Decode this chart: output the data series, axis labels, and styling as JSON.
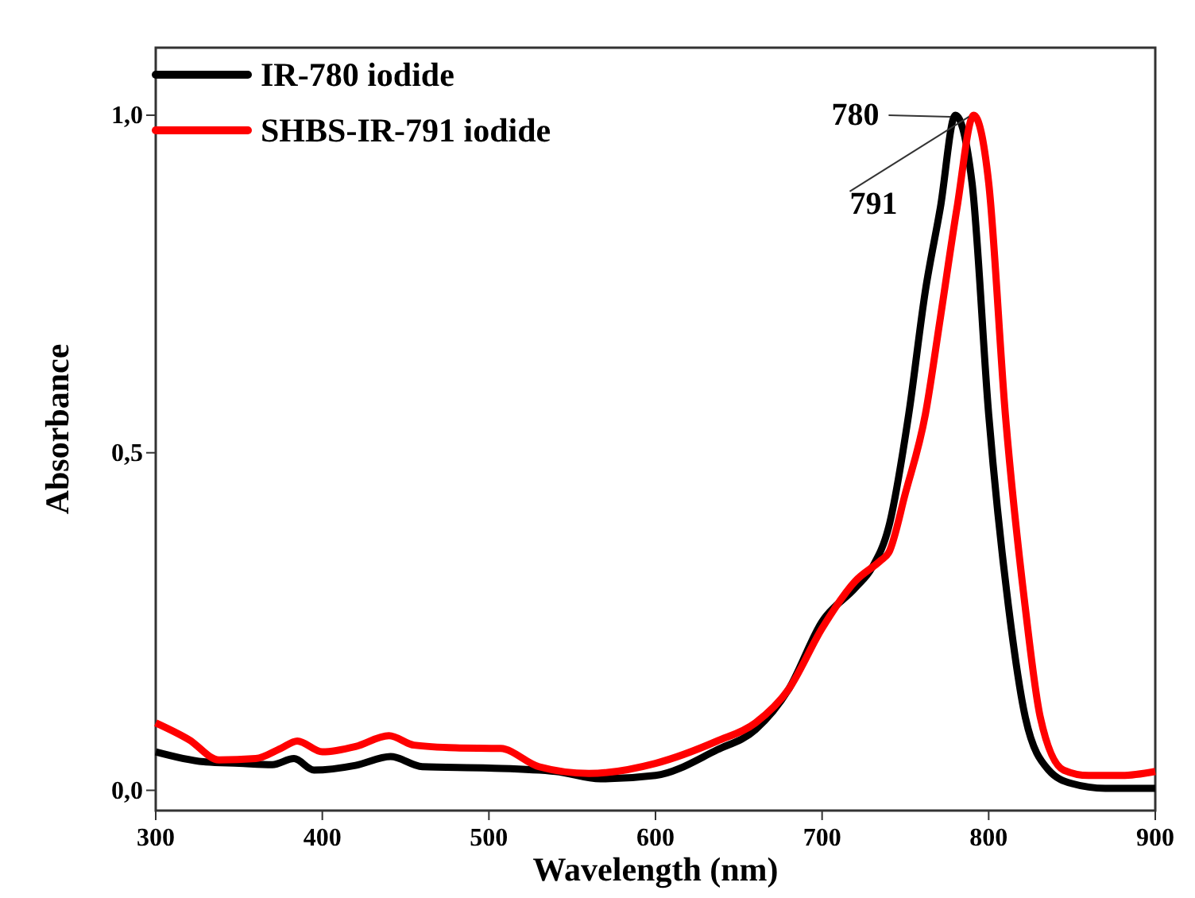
{
  "chart_data": {
    "type": "line",
    "xlabel": "Wavelength (nm)",
    "ylabel": "Absorbance",
    "xlim": [
      300,
      900
    ],
    "ylim": [
      -0.03,
      1.1
    ],
    "xticks": [
      300,
      400,
      500,
      600,
      700,
      800,
      900
    ],
    "yticks": [
      {
        "value": 0,
        "label": "0,0"
      },
      {
        "value": 0.5,
        "label": "0,5"
      },
      {
        "value": 1,
        "label": "1,0"
      }
    ],
    "legend": "top left",
    "grid": false,
    "line_style": "solid",
    "marker": "none",
    "annotations": [
      {
        "text": "780",
        "x": 780,
        "y": 1.0
      },
      {
        "text": "791",
        "x": 791,
        "y": 1.0
      }
    ],
    "series": [
      {
        "name": "IR-780 iodide",
        "color": "#000000",
        "x": [
          300,
          330,
          350,
          370,
          383,
          395,
          420,
          441,
          460,
          500,
          540,
          567,
          600,
          637,
          660,
          680,
          700,
          720,
          730,
          740,
          752,
          762,
          771,
          780,
          790,
          800,
          812,
          822,
          836,
          850,
          870,
          900
        ],
        "values": [
          0.057,
          0.042,
          0.04,
          0.038,
          0.047,
          0.03,
          0.037,
          0.05,
          0.035,
          0.033,
          0.028,
          0.017,
          0.022,
          0.06,
          0.09,
          0.15,
          0.25,
          0.3,
          0.33,
          0.39,
          0.557,
          0.74,
          0.863,
          1.0,
          0.9,
          0.557,
          0.27,
          0.108,
          0.03,
          0.01,
          0.003,
          0.003
        ]
      },
      {
        "name": "SHBS-IR-791 iodide",
        "color": "#ff0000",
        "x": [
          300,
          320,
          338,
          360,
          375,
          385,
          400,
          420,
          440,
          455,
          480,
          507,
          530,
          560,
          600,
          637,
          660,
          680,
          700,
          720,
          735,
          740,
          750,
          762,
          771,
          781,
          791,
          800,
          810,
          822,
          831,
          845,
          860,
          880,
          900
        ],
        "values": [
          0.1,
          0.075,
          0.045,
          0.047,
          0.062,
          0.073,
          0.057,
          0.065,
          0.081,
          0.067,
          0.063,
          0.062,
          0.035,
          0.025,
          0.04,
          0.073,
          0.1,
          0.15,
          0.24,
          0.31,
          0.34,
          0.352,
          0.44,
          0.557,
          0.7,
          0.863,
          1.0,
          0.9,
          0.557,
          0.27,
          0.108,
          0.03,
          0.022,
          0.022,
          0.028
        ]
      }
    ]
  }
}
